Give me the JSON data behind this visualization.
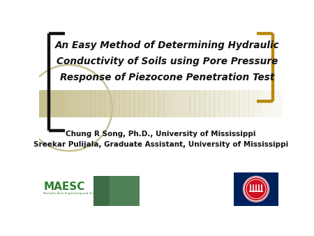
{
  "title_line1": "An Easy Method of Determining Hydraulic",
  "title_line2": "Conductivity of Soils using Pore Pressure",
  "title_line3": "Response of Piezocone Penetration Test",
  "author_line1": "Chung R Song, Ph.D., University of Mississippi",
  "author_line2": "Sreekar Pulijala, Graduate Assistant, University of Mississippi",
  "bg_color": "#ffffff",
  "banner_color": "#c8c090",
  "bracket_left_color": "#111111",
  "bracket_right_color": "#b8860b",
  "maesc_color": "#2e7d32",
  "title_color": "#111111",
  "author_color": "#111111",
  "circle_color": "#c8c090"
}
